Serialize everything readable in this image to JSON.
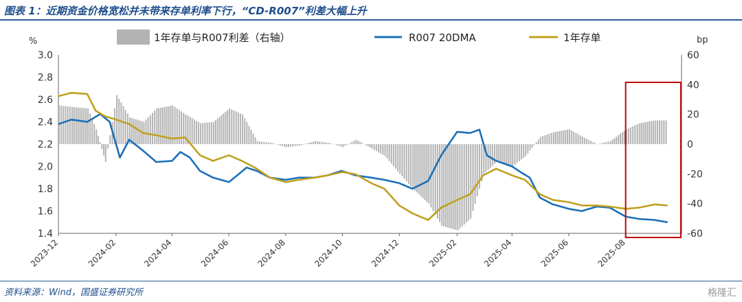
{
  "title": "图表 1：近期资金价格宽松并未带来存单利率下行，“CD-R007”利差大幅上升",
  "source": "资料来源：Wind，国盛证券研究所",
  "watermark": "格隆汇",
  "chart_data": {
    "type": "line",
    "left_axis": {
      "unit": "%",
      "ylim": [
        1.4,
        3.0
      ],
      "ticks": [
        "3.0",
        "2.8",
        "2.6",
        "2.4",
        "2.2",
        "2.0",
        "1.8",
        "1.6",
        "1.4"
      ]
    },
    "right_axis": {
      "unit": "bp",
      "ylim": [
        -60,
        60
      ],
      "ticks": [
        "60",
        "40",
        "20",
        "0",
        "-20",
        "-40",
        "-60"
      ]
    },
    "x_range": [
      "2023-12",
      "2025-09"
    ],
    "x_ticks": [
      "2023-12",
      "2024-02",
      "2024-04",
      "2024-06",
      "2024-08",
      "2024-10",
      "2024-12",
      "2025-02",
      "2025-04",
      "2025-06",
      "2025-08"
    ],
    "legend": [
      "1年存单与R007利差（右轴）",
      "R007 20DMA",
      "1年存单"
    ],
    "colors": {
      "spread": "#b3b3b3",
      "r007": "#1b6fb8",
      "cd": "#c0a020",
      "highlight": "#c00000"
    },
    "highlight_range": [
      "2025-08-01",
      "2025-09-30"
    ],
    "series": [
      {
        "name": "R007 20DMA",
        "axis": "left",
        "points": [
          [
            "2023-12-01",
            2.38
          ],
          [
            "2023-12-15",
            2.42
          ],
          [
            "2024-01-01",
            2.4
          ],
          [
            "2024-01-15",
            2.47
          ],
          [
            "2024-01-25",
            2.4
          ],
          [
            "2024-02-05",
            2.08
          ],
          [
            "2024-02-15",
            2.24
          ],
          [
            "2024-03-01",
            2.14
          ],
          [
            "2024-03-15",
            2.04
          ],
          [
            "2024-04-01",
            2.05
          ],
          [
            "2024-04-10",
            2.13
          ],
          [
            "2024-04-20",
            2.08
          ],
          [
            "2024-05-01",
            1.96
          ],
          [
            "2024-05-15",
            1.9
          ],
          [
            "2024-06-01",
            1.86
          ],
          [
            "2024-06-10",
            1.92
          ],
          [
            "2024-06-20",
            1.99
          ],
          [
            "2024-07-01",
            1.96
          ],
          [
            "2024-07-15",
            1.9
          ],
          [
            "2024-08-01",
            1.88
          ],
          [
            "2024-08-15",
            1.9
          ],
          [
            "2024-09-01",
            1.9
          ],
          [
            "2024-09-15",
            1.92
          ],
          [
            "2024-09-30",
            1.96
          ],
          [
            "2024-10-15",
            1.92
          ],
          [
            "2024-11-01",
            1.9
          ],
          [
            "2024-11-15",
            1.88
          ],
          [
            "2024-12-01",
            1.85
          ],
          [
            "2024-12-15",
            1.8
          ],
          [
            "2025-01-01",
            1.87
          ],
          [
            "2025-01-15",
            2.1
          ],
          [
            "2025-02-01",
            2.31
          ],
          [
            "2025-02-15",
            2.3
          ],
          [
            "2025-02-25",
            2.33
          ],
          [
            "2025-03-05",
            2.1
          ],
          [
            "2025-03-15",
            2.05
          ],
          [
            "2025-04-01",
            2.0
          ],
          [
            "2025-04-10",
            1.95
          ],
          [
            "2025-04-20",
            1.9
          ],
          [
            "2025-05-01",
            1.72
          ],
          [
            "2025-05-15",
            1.66
          ],
          [
            "2025-06-01",
            1.62
          ],
          [
            "2025-06-15",
            1.6
          ],
          [
            "2025-07-01",
            1.64
          ],
          [
            "2025-07-15",
            1.63
          ],
          [
            "2025-08-01",
            1.55
          ],
          [
            "2025-08-15",
            1.53
          ],
          [
            "2025-09-01",
            1.52
          ],
          [
            "2025-09-15",
            1.5
          ]
        ]
      },
      {
        "name": "1年存单",
        "axis": "left",
        "points": [
          [
            "2023-12-01",
            2.63
          ],
          [
            "2023-12-15",
            2.66
          ],
          [
            "2024-01-01",
            2.65
          ],
          [
            "2024-01-10",
            2.5
          ],
          [
            "2024-01-20",
            2.45
          ],
          [
            "2024-02-01",
            2.42
          ],
          [
            "2024-02-15",
            2.38
          ],
          [
            "2024-03-01",
            2.3
          ],
          [
            "2024-03-15",
            2.28
          ],
          [
            "2024-04-01",
            2.25
          ],
          [
            "2024-04-15",
            2.26
          ],
          [
            "2024-05-01",
            2.1
          ],
          [
            "2024-05-15",
            2.05
          ],
          [
            "2024-06-01",
            2.1
          ],
          [
            "2024-06-15",
            2.05
          ],
          [
            "2024-07-01",
            1.98
          ],
          [
            "2024-07-15",
            1.9
          ],
          [
            "2024-08-01",
            1.86
          ],
          [
            "2024-08-15",
            1.88
          ],
          [
            "2024-09-01",
            1.9
          ],
          [
            "2024-09-15",
            1.92
          ],
          [
            "2024-10-01",
            1.95
          ],
          [
            "2024-10-15",
            1.93
          ],
          [
            "2024-11-01",
            1.85
          ],
          [
            "2024-11-15",
            1.8
          ],
          [
            "2024-12-01",
            1.65
          ],
          [
            "2024-12-15",
            1.58
          ],
          [
            "2025-01-01",
            1.52
          ],
          [
            "2025-01-15",
            1.63
          ],
          [
            "2025-02-01",
            1.7
          ],
          [
            "2025-02-15",
            1.75
          ],
          [
            "2025-03-01",
            1.92
          ],
          [
            "2025-03-15",
            1.98
          ],
          [
            "2025-04-01",
            1.92
          ],
          [
            "2025-04-15",
            1.88
          ],
          [
            "2025-05-01",
            1.75
          ],
          [
            "2025-05-15",
            1.7
          ],
          [
            "2025-06-01",
            1.68
          ],
          [
            "2025-06-15",
            1.65
          ],
          [
            "2025-07-01",
            1.65
          ],
          [
            "2025-07-15",
            1.64
          ],
          [
            "2025-08-01",
            1.62
          ],
          [
            "2025-08-15",
            1.63
          ],
          [
            "2025-09-01",
            1.66
          ],
          [
            "2025-09-15",
            1.65
          ]
        ]
      },
      {
        "name": "1年存单与R007利差（右轴）",
        "axis": "right",
        "type": "bar",
        "points": [
          [
            "2023-12-01",
            26
          ],
          [
            "2023-12-15",
            25
          ],
          [
            "2024-01-01",
            24
          ],
          [
            "2024-01-10",
            10
          ],
          [
            "2024-01-20",
            -12
          ],
          [
            "2024-02-01",
            33
          ],
          [
            "2024-02-15",
            18
          ],
          [
            "2024-03-01",
            15
          ],
          [
            "2024-03-15",
            24
          ],
          [
            "2024-04-01",
            26
          ],
          [
            "2024-04-15",
            20
          ],
          [
            "2024-05-01",
            14
          ],
          [
            "2024-05-15",
            15
          ],
          [
            "2024-06-01",
            24
          ],
          [
            "2024-06-15",
            20
          ],
          [
            "2024-07-01",
            2
          ],
          [
            "2024-07-15",
            1
          ],
          [
            "2024-08-01",
            -2
          ],
          [
            "2024-08-15",
            -1
          ],
          [
            "2024-09-01",
            2
          ],
          [
            "2024-09-15",
            1
          ],
          [
            "2024-10-01",
            -2
          ],
          [
            "2024-10-15",
            3
          ],
          [
            "2024-11-01",
            -3
          ],
          [
            "2024-11-15",
            -8
          ],
          [
            "2024-12-01",
            -20
          ],
          [
            "2024-12-15",
            -30
          ],
          [
            "2025-01-01",
            -40
          ],
          [
            "2025-01-15",
            -55
          ],
          [
            "2025-02-01",
            -58
          ],
          [
            "2025-02-15",
            -50
          ],
          [
            "2025-03-01",
            -20
          ],
          [
            "2025-03-15",
            -12
          ],
          [
            "2025-04-01",
            -15
          ],
          [
            "2025-04-15",
            -8
          ],
          [
            "2025-05-01",
            5
          ],
          [
            "2025-05-15",
            8
          ],
          [
            "2025-06-01",
            10
          ],
          [
            "2025-06-15",
            5
          ],
          [
            "2025-07-01",
            0
          ],
          [
            "2025-07-15",
            2
          ],
          [
            "2025-08-01",
            10
          ],
          [
            "2025-08-15",
            14
          ],
          [
            "2025-09-01",
            16
          ],
          [
            "2025-09-15",
            16
          ]
        ]
      }
    ]
  }
}
